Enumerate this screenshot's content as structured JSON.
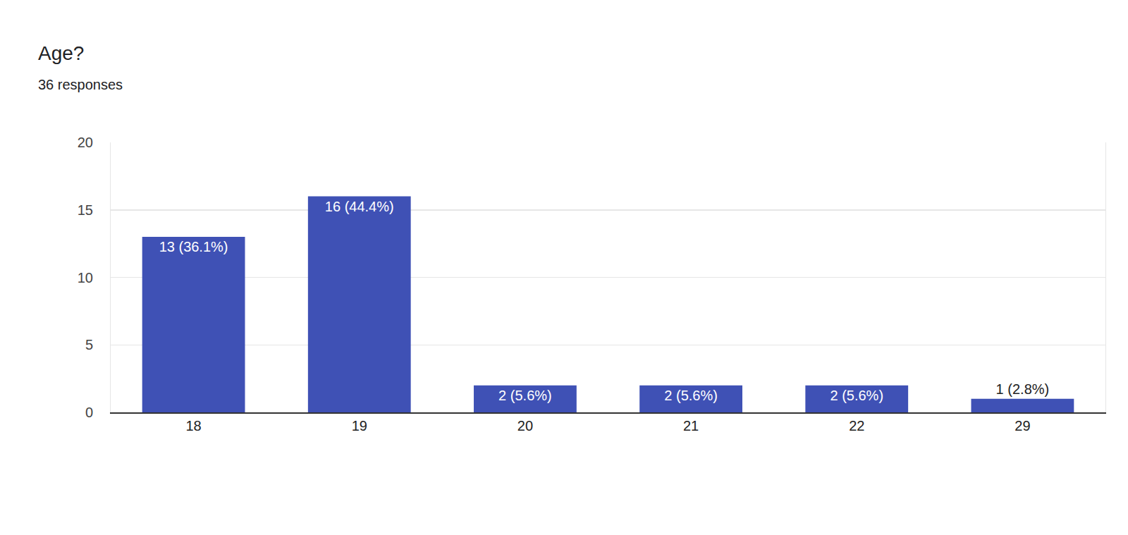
{
  "chart_data": {
    "type": "bar",
    "title": "Age?",
    "subtitle": "36 responses",
    "categories": [
      "18",
      "19",
      "20",
      "21",
      "22",
      "29"
    ],
    "values": [
      13,
      16,
      2,
      2,
      2,
      1
    ],
    "value_labels": [
      "13 (36.1%)",
      "16 (44.4%)",
      "2 (5.6%)",
      "2 (5.6%)",
      "2 (5.6%)",
      "1 (2.8%)"
    ],
    "data_labels": true,
    "color": "#3f51b5",
    "ylim": [
      0,
      20
    ],
    "yticks": [
      0,
      5,
      10,
      15,
      20
    ],
    "grid": true
  }
}
